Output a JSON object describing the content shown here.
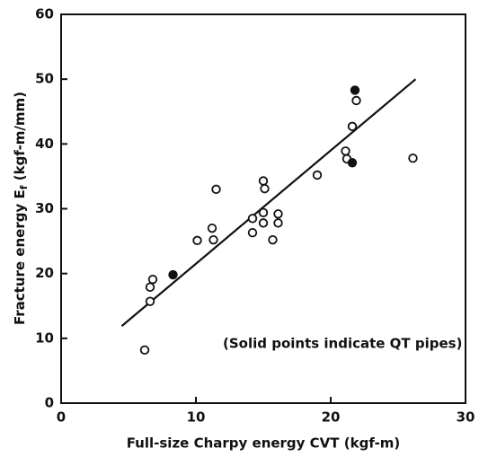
{
  "chart_data": {
    "type": "scatter",
    "x_label": "Full-size Charpy energy CVT (kgf-m)",
    "y_label_parts": [
      "Fracture energy E",
      "f",
      " (kgf-m/mm)"
    ],
    "annotation": "(Solid points indicate QT pipes)",
    "xlim": [
      0,
      30
    ],
    "xticks": [
      0,
      10,
      20,
      30
    ],
    "ylim": [
      0,
      60
    ],
    "yticks": [
      0,
      10,
      20,
      30,
      40,
      50,
      60
    ],
    "color": "#111111",
    "series": [
      {
        "filled": false,
        "x": [
          6.2,
          6.6,
          6.6,
          6.8,
          10.1,
          11.2,
          11.3,
          11.5,
          14.2,
          14.2,
          15.0,
          15.1,
          15.0,
          15.0,
          15.7,
          16.1,
          16.1,
          19.0,
          21.1,
          21.2,
          21.6,
          21.9,
          26.1
        ],
        "values": [
          8.2,
          15.7,
          17.9,
          19.1,
          25.1,
          27.0,
          25.2,
          33.0,
          28.5,
          26.3,
          34.3,
          33.1,
          29.4,
          27.8,
          25.2,
          29.2,
          27.8,
          35.2,
          38.9,
          37.7,
          42.7,
          46.7,
          37.8
        ]
      },
      {
        "filled": true,
        "x": [
          8.3,
          21.8,
          21.6
        ],
        "values": [
          19.8,
          48.3,
          37.1
        ]
      }
    ],
    "fit_line": {
      "x": [
        4.5,
        26.3
      ],
      "values": [
        11.9,
        50
      ]
    }
  }
}
